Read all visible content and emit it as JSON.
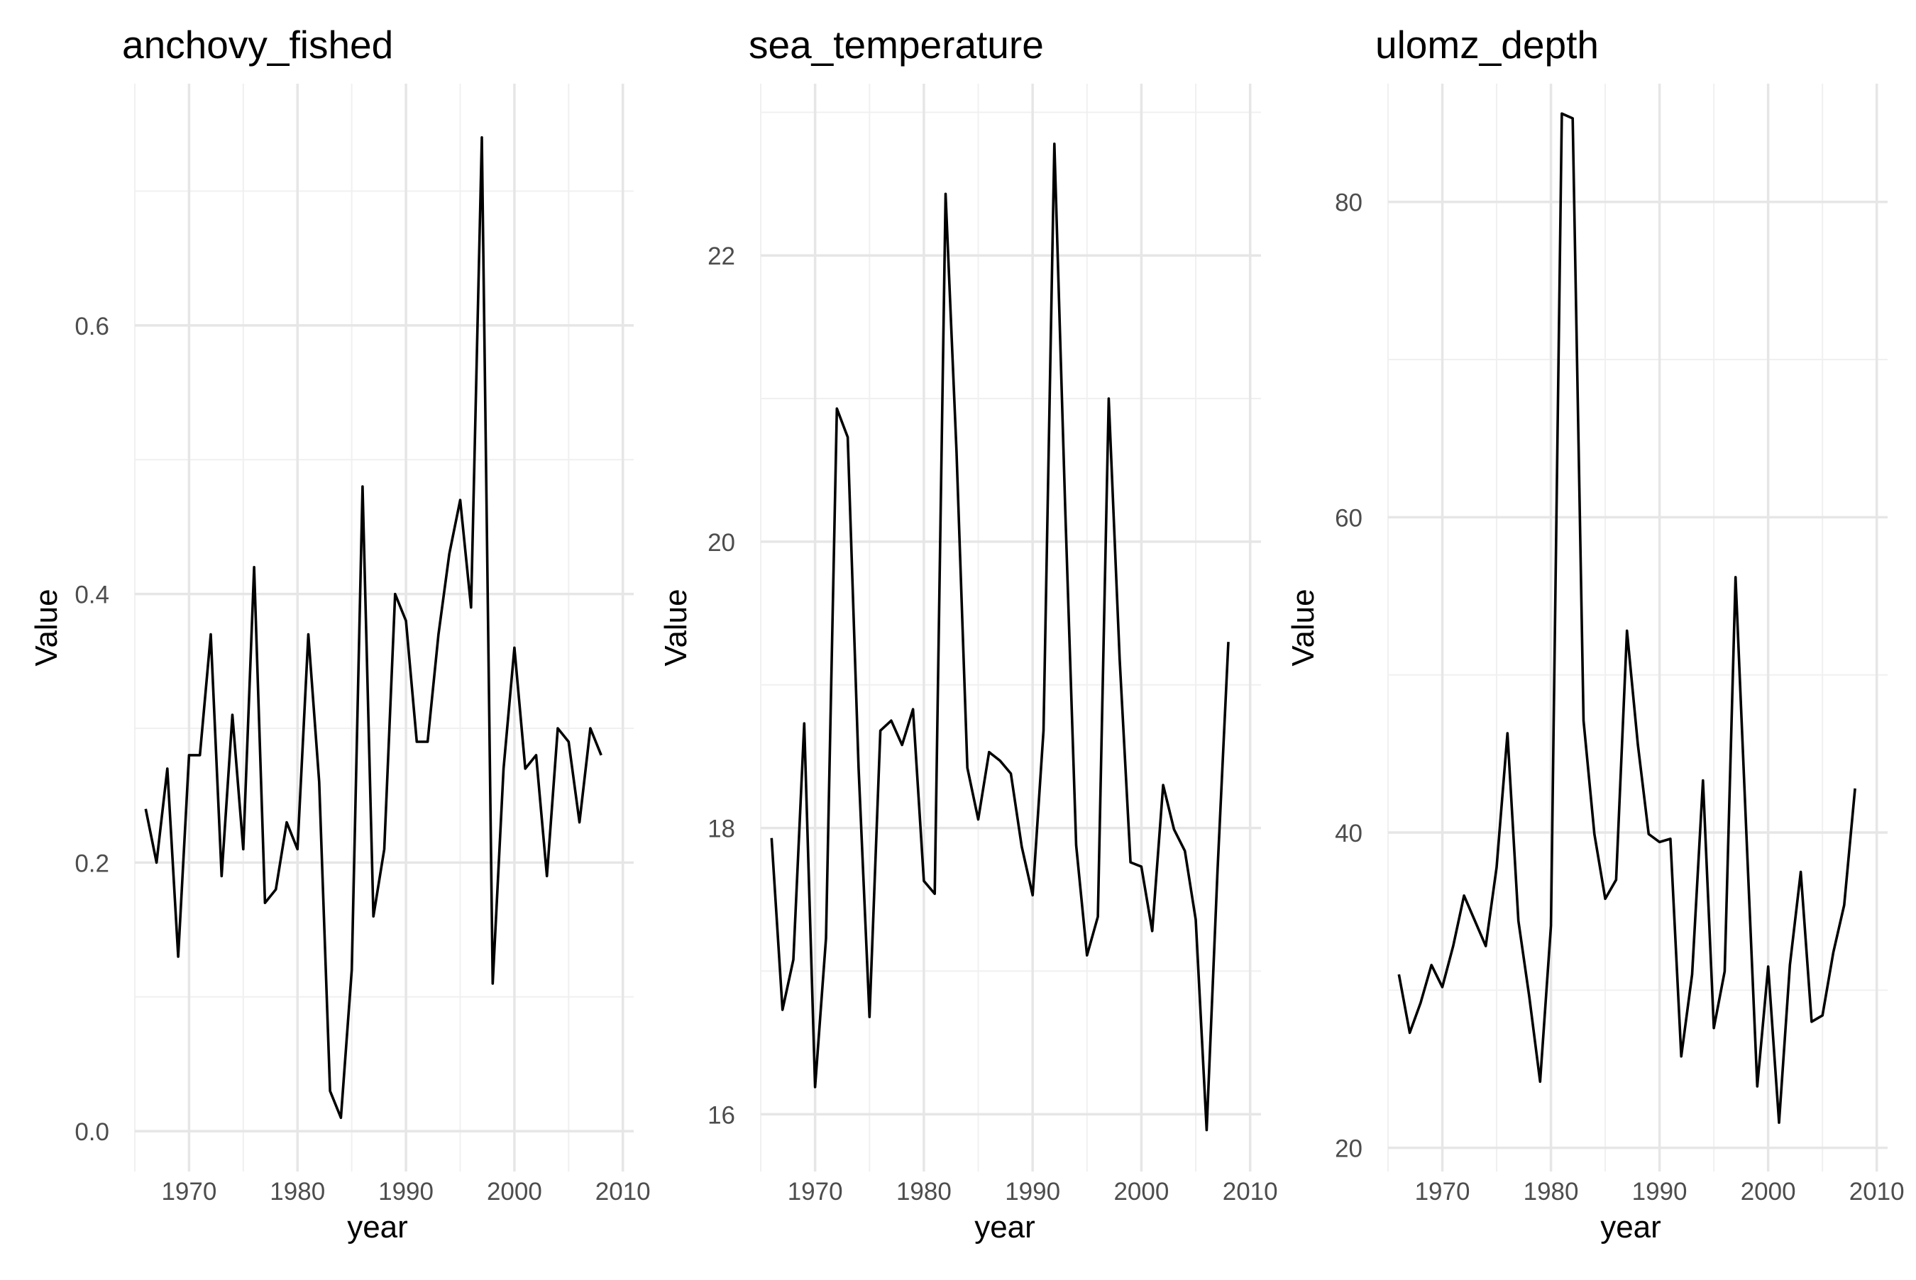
{
  "figure": {
    "x_axis_label": "year",
    "y_axis_label": "Value"
  },
  "chart_data": [
    {
      "type": "line",
      "title": "anchovy_fished",
      "xlabel": "year",
      "ylabel": "Value",
      "xlim": [
        1965,
        2011
      ],
      "ylim": [
        -0.03,
        0.78
      ],
      "xticks": [
        "1970",
        "1980",
        "1990",
        "2000",
        "2010"
      ],
      "yticks": [
        "0.0",
        "0.2",
        "0.4",
        "0.6"
      ],
      "grid": true,
      "x": [
        1966,
        1967,
        1968,
        1969,
        1970,
        1971,
        1972,
        1973,
        1974,
        1975,
        1976,
        1977,
        1978,
        1979,
        1980,
        1981,
        1982,
        1983,
        1984,
        1985,
        1986,
        1987,
        1988,
        1989,
        1990,
        1991,
        1992,
        1993,
        1994,
        1995,
        1996,
        1997,
        1998,
        1999,
        2000,
        2001,
        2002,
        2003,
        2004,
        2005,
        2006,
        2007,
        2008
      ],
      "y": [
        0.24,
        0.2,
        0.27,
        0.13,
        0.28,
        0.28,
        0.37,
        0.19,
        0.31,
        0.21,
        0.42,
        0.17,
        0.18,
        0.23,
        0.21,
        0.37,
        0.26,
        0.03,
        0.01,
        0.12,
        0.48,
        0.16,
        0.21,
        0.4,
        0.38,
        0.29,
        0.29,
        0.37,
        0.43,
        0.47,
        0.39,
        0.74,
        0.11,
        0.27,
        0.36,
        0.27,
        0.28,
        0.19,
        0.3,
        0.29,
        0.23,
        0.3,
        0.28
      ]
    },
    {
      "type": "line",
      "title": "sea_temperature",
      "xlabel": "year",
      "ylabel": "Value",
      "xlim": [
        1965,
        2011
      ],
      "ylim": [
        15.6,
        23.2
      ],
      "xticks": [
        "1970",
        "1980",
        "1990",
        "2000",
        "2010"
      ],
      "yticks": [
        "16",
        "18",
        "20",
        "22"
      ],
      "grid": true,
      "x": [
        1966,
        1967,
        1968,
        1969,
        1970,
        1971,
        1972,
        1973,
        1974,
        1975,
        1976,
        1977,
        1978,
        1979,
        1980,
        1981,
        1982,
        1983,
        1984,
        1985,
        1986,
        1987,
        1988,
        1989,
        1990,
        1991,
        1992,
        1993,
        1994,
        1995,
        1996,
        1997,
        1998,
        1999,
        2000,
        2001,
        2002,
        2003,
        2004,
        2005,
        2006,
        2007,
        2008
      ],
      "y": [
        17.93,
        16.73,
        17.08,
        18.73,
        16.19,
        17.23,
        20.93,
        20.73,
        18.42,
        16.68,
        18.68,
        18.75,
        18.58,
        18.83,
        17.63,
        17.54,
        22.43,
        20.63,
        18.42,
        18.06,
        18.53,
        18.47,
        18.38,
        17.87,
        17.53,
        18.68,
        22.78,
        20.23,
        17.88,
        17.11,
        17.38,
        21.0,
        19.18,
        17.76,
        17.73,
        17.28,
        18.3,
        17.99,
        17.84,
        17.36,
        15.89,
        17.7,
        19.3
      ]
    },
    {
      "type": "line",
      "title": "ulomz_depth",
      "xlabel": "year",
      "ylabel": "Value",
      "xlim": [
        1965,
        2011
      ],
      "ylim": [
        18.5,
        87.5
      ],
      "xticks": [
        "1970",
        "1980",
        "1990",
        "2000",
        "2010"
      ],
      "yticks": [
        "20",
        "40",
        "60",
        "80"
      ],
      "grid": true,
      "x": [
        1966,
        1967,
        1968,
        1969,
        1970,
        1971,
        1972,
        1973,
        1974,
        1975,
        1976,
        1977,
        1978,
        1979,
        1980,
        1981,
        1982,
        1983,
        1984,
        1985,
        1986,
        1987,
        1988,
        1989,
        1990,
        1991,
        1992,
        1993,
        1994,
        1995,
        1996,
        1997,
        1998,
        1999,
        2000,
        2001,
        2002,
        2003,
        2004,
        2005,
        2006,
        2007,
        2008
      ],
      "y": [
        31.0,
        27.3,
        29.2,
        31.6,
        30.2,
        32.8,
        36.0,
        34.4,
        32.8,
        37.8,
        46.3,
        34.4,
        29.6,
        24.2,
        34.1,
        85.6,
        85.3,
        47.1,
        39.9,
        35.8,
        37.0,
        52.8,
        45.6,
        39.9,
        39.4,
        39.6,
        25.8,
        31.0,
        43.3,
        27.6,
        31.2,
        56.2,
        39.9,
        23.9,
        31.5,
        21.6,
        31.6,
        37.5,
        28.0,
        28.4,
        32.4,
        35.4,
        42.8
      ]
    }
  ]
}
